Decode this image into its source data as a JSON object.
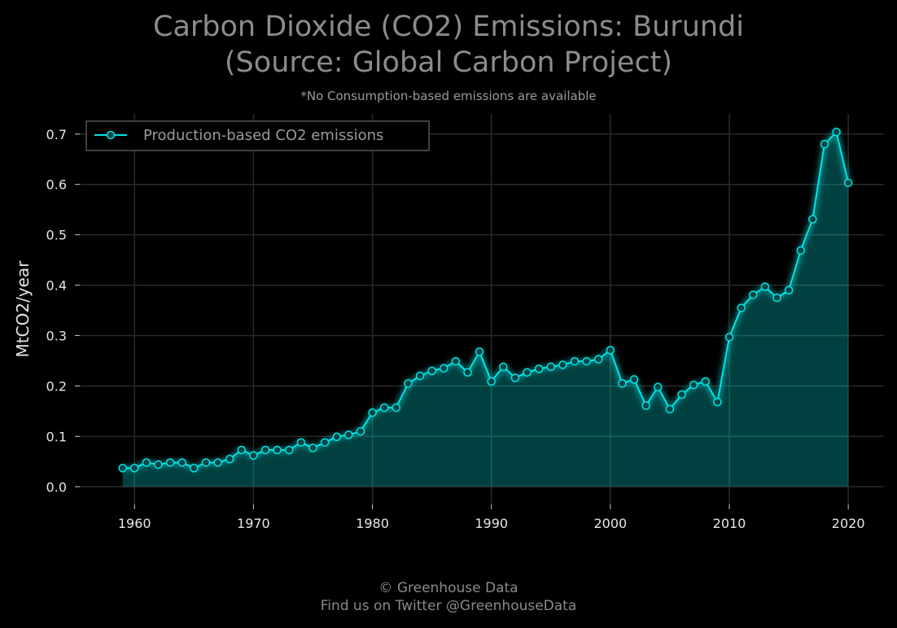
{
  "chart_data": {
    "type": "area",
    "title_line1": "Carbon Dioxide (CO2) Emissions: Burundi",
    "title_line2": "(Source: Global Carbon Project)",
    "subtitle": "*No Consumption-based emissions are available",
    "xlabel": "",
    "ylabel": "MtCO2/year",
    "xlim": [
      1955.4,
      2023.0
    ],
    "ylim": [
      -0.035,
      0.74
    ],
    "xticks": [
      1960,
      1970,
      1980,
      1990,
      2000,
      2010,
      2020
    ],
    "yticks": [
      0.0,
      0.1,
      0.2,
      0.3,
      0.4,
      0.5,
      0.6,
      0.7
    ],
    "ytick_labels": [
      "0.0",
      "0.1",
      "0.2",
      "0.3",
      "0.4",
      "0.5",
      "0.6",
      "0.7"
    ],
    "grid": true,
    "legend_position": "top-left",
    "series": [
      {
        "name": "Production-based CO2 emissions",
        "color": "#00e5e5",
        "x": [
          1959,
          1960,
          1961,
          1962,
          1963,
          1964,
          1965,
          1966,
          1967,
          1968,
          1969,
          1970,
          1971,
          1972,
          1973,
          1974,
          1975,
          1976,
          1977,
          1978,
          1979,
          1980,
          1981,
          1982,
          1983,
          1984,
          1985,
          1986,
          1987,
          1988,
          1989,
          1990,
          1991,
          1992,
          1993,
          1994,
          1995,
          1996,
          1997,
          1998,
          1999,
          2000,
          2001,
          2002,
          2003,
          2004,
          2005,
          2006,
          2007,
          2008,
          2009,
          2010,
          2011,
          2012,
          2013,
          2014,
          2015,
          2016,
          2017,
          2018,
          2019,
          2020
        ],
        "values": [
          0.037,
          0.037,
          0.048,
          0.044,
          0.048,
          0.048,
          0.037,
          0.048,
          0.048,
          0.055,
          0.073,
          0.062,
          0.073,
          0.073,
          0.073,
          0.088,
          0.077,
          0.088,
          0.099,
          0.103,
          0.11,
          0.147,
          0.157,
          0.157,
          0.205,
          0.22,
          0.23,
          0.235,
          0.249,
          0.227,
          0.268,
          0.209,
          0.238,
          0.216,
          0.227,
          0.234,
          0.238,
          0.242,
          0.249,
          0.249,
          0.253,
          0.271,
          0.205,
          0.213,
          0.161,
          0.198,
          0.154,
          0.183,
          0.202,
          0.209,
          0.168,
          0.297,
          0.355,
          0.381,
          0.397,
          0.375,
          0.39,
          0.469,
          0.531,
          0.68,
          0.704,
          0.603
        ]
      }
    ]
  },
  "footer": {
    "line1": "© Greenhouse Data",
    "line2": "Find us on Twitter @GreenhouseData"
  }
}
